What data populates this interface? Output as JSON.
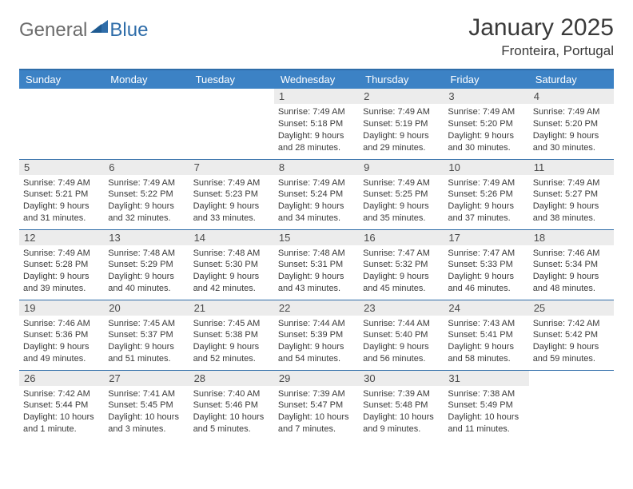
{
  "logo": {
    "text1": "General",
    "text2": "Blue"
  },
  "title": "January 2025",
  "location": "Fronteira, Portugal",
  "colors": {
    "header_bg": "#3c82c5",
    "header_border": "#2f6da9",
    "row_border": "#2f6da9",
    "daynum_bg": "#ececec",
    "text": "#3a3a3a",
    "logo_gray": "#6b6b6b",
    "logo_blue": "#2f6da9"
  },
  "weekdays": [
    "Sunday",
    "Monday",
    "Tuesday",
    "Wednesday",
    "Thursday",
    "Friday",
    "Saturday"
  ],
  "weeks": [
    [
      {
        "day": "",
        "sunrise": "",
        "sunset": "",
        "daylight": ""
      },
      {
        "day": "",
        "sunrise": "",
        "sunset": "",
        "daylight": ""
      },
      {
        "day": "",
        "sunrise": "",
        "sunset": "",
        "daylight": ""
      },
      {
        "day": "1",
        "sunrise": "Sunrise: 7:49 AM",
        "sunset": "Sunset: 5:18 PM",
        "daylight": "Daylight: 9 hours and 28 minutes."
      },
      {
        "day": "2",
        "sunrise": "Sunrise: 7:49 AM",
        "sunset": "Sunset: 5:19 PM",
        "daylight": "Daylight: 9 hours and 29 minutes."
      },
      {
        "day": "3",
        "sunrise": "Sunrise: 7:49 AM",
        "sunset": "Sunset: 5:20 PM",
        "daylight": "Daylight: 9 hours and 30 minutes."
      },
      {
        "day": "4",
        "sunrise": "Sunrise: 7:49 AM",
        "sunset": "Sunset: 5:20 PM",
        "daylight": "Daylight: 9 hours and 30 minutes."
      }
    ],
    [
      {
        "day": "5",
        "sunrise": "Sunrise: 7:49 AM",
        "sunset": "Sunset: 5:21 PM",
        "daylight": "Daylight: 9 hours and 31 minutes."
      },
      {
        "day": "6",
        "sunrise": "Sunrise: 7:49 AM",
        "sunset": "Sunset: 5:22 PM",
        "daylight": "Daylight: 9 hours and 32 minutes."
      },
      {
        "day": "7",
        "sunrise": "Sunrise: 7:49 AM",
        "sunset": "Sunset: 5:23 PM",
        "daylight": "Daylight: 9 hours and 33 minutes."
      },
      {
        "day": "8",
        "sunrise": "Sunrise: 7:49 AM",
        "sunset": "Sunset: 5:24 PM",
        "daylight": "Daylight: 9 hours and 34 minutes."
      },
      {
        "day": "9",
        "sunrise": "Sunrise: 7:49 AM",
        "sunset": "Sunset: 5:25 PM",
        "daylight": "Daylight: 9 hours and 35 minutes."
      },
      {
        "day": "10",
        "sunrise": "Sunrise: 7:49 AM",
        "sunset": "Sunset: 5:26 PM",
        "daylight": "Daylight: 9 hours and 37 minutes."
      },
      {
        "day": "11",
        "sunrise": "Sunrise: 7:49 AM",
        "sunset": "Sunset: 5:27 PM",
        "daylight": "Daylight: 9 hours and 38 minutes."
      }
    ],
    [
      {
        "day": "12",
        "sunrise": "Sunrise: 7:49 AM",
        "sunset": "Sunset: 5:28 PM",
        "daylight": "Daylight: 9 hours and 39 minutes."
      },
      {
        "day": "13",
        "sunrise": "Sunrise: 7:48 AM",
        "sunset": "Sunset: 5:29 PM",
        "daylight": "Daylight: 9 hours and 40 minutes."
      },
      {
        "day": "14",
        "sunrise": "Sunrise: 7:48 AM",
        "sunset": "Sunset: 5:30 PM",
        "daylight": "Daylight: 9 hours and 42 minutes."
      },
      {
        "day": "15",
        "sunrise": "Sunrise: 7:48 AM",
        "sunset": "Sunset: 5:31 PM",
        "daylight": "Daylight: 9 hours and 43 minutes."
      },
      {
        "day": "16",
        "sunrise": "Sunrise: 7:47 AM",
        "sunset": "Sunset: 5:32 PM",
        "daylight": "Daylight: 9 hours and 45 minutes."
      },
      {
        "day": "17",
        "sunrise": "Sunrise: 7:47 AM",
        "sunset": "Sunset: 5:33 PM",
        "daylight": "Daylight: 9 hours and 46 minutes."
      },
      {
        "day": "18",
        "sunrise": "Sunrise: 7:46 AM",
        "sunset": "Sunset: 5:34 PM",
        "daylight": "Daylight: 9 hours and 48 minutes."
      }
    ],
    [
      {
        "day": "19",
        "sunrise": "Sunrise: 7:46 AM",
        "sunset": "Sunset: 5:36 PM",
        "daylight": "Daylight: 9 hours and 49 minutes."
      },
      {
        "day": "20",
        "sunrise": "Sunrise: 7:45 AM",
        "sunset": "Sunset: 5:37 PM",
        "daylight": "Daylight: 9 hours and 51 minutes."
      },
      {
        "day": "21",
        "sunrise": "Sunrise: 7:45 AM",
        "sunset": "Sunset: 5:38 PM",
        "daylight": "Daylight: 9 hours and 52 minutes."
      },
      {
        "day": "22",
        "sunrise": "Sunrise: 7:44 AM",
        "sunset": "Sunset: 5:39 PM",
        "daylight": "Daylight: 9 hours and 54 minutes."
      },
      {
        "day": "23",
        "sunrise": "Sunrise: 7:44 AM",
        "sunset": "Sunset: 5:40 PM",
        "daylight": "Daylight: 9 hours and 56 minutes."
      },
      {
        "day": "24",
        "sunrise": "Sunrise: 7:43 AM",
        "sunset": "Sunset: 5:41 PM",
        "daylight": "Daylight: 9 hours and 58 minutes."
      },
      {
        "day": "25",
        "sunrise": "Sunrise: 7:42 AM",
        "sunset": "Sunset: 5:42 PM",
        "daylight": "Daylight: 9 hours and 59 minutes."
      }
    ],
    [
      {
        "day": "26",
        "sunrise": "Sunrise: 7:42 AM",
        "sunset": "Sunset: 5:44 PM",
        "daylight": "Daylight: 10 hours and 1 minute."
      },
      {
        "day": "27",
        "sunrise": "Sunrise: 7:41 AM",
        "sunset": "Sunset: 5:45 PM",
        "daylight": "Daylight: 10 hours and 3 minutes."
      },
      {
        "day": "28",
        "sunrise": "Sunrise: 7:40 AM",
        "sunset": "Sunset: 5:46 PM",
        "daylight": "Daylight: 10 hours and 5 minutes."
      },
      {
        "day": "29",
        "sunrise": "Sunrise: 7:39 AM",
        "sunset": "Sunset: 5:47 PM",
        "daylight": "Daylight: 10 hours and 7 minutes."
      },
      {
        "day": "30",
        "sunrise": "Sunrise: 7:39 AM",
        "sunset": "Sunset: 5:48 PM",
        "daylight": "Daylight: 10 hours and 9 minutes."
      },
      {
        "day": "31",
        "sunrise": "Sunrise: 7:38 AM",
        "sunset": "Sunset: 5:49 PM",
        "daylight": "Daylight: 10 hours and 11 minutes."
      },
      {
        "day": "",
        "sunrise": "",
        "sunset": "",
        "daylight": ""
      }
    ]
  ]
}
